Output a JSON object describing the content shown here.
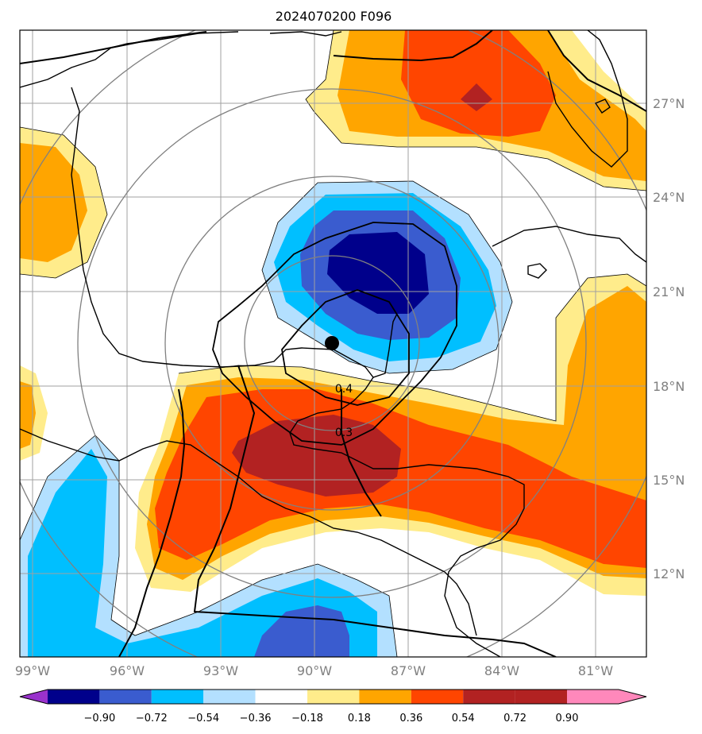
{
  "title": "2024070200 F096",
  "map": {
    "lon_ticks": [
      "99°W",
      "96°W",
      "93°W",
      "90°W",
      "87°W",
      "84°W",
      "81°W"
    ],
    "lat_ticks": [
      "27°N",
      "24°N",
      "21°N",
      "18°N",
      "15°N",
      "12°N"
    ],
    "contour_labels": [
      "0.4",
      "0.3"
    ],
    "storm_center": {
      "lon": -89.4,
      "lat": 19.3
    }
  },
  "colorbar": {
    "levels": [
      "−0.90",
      "−0.72",
      "−0.54",
      "−0.36",
      "−0.18",
      "0.18",
      "0.36",
      "0.54",
      "0.72",
      "0.90"
    ],
    "colors": [
      "#9932cc",
      "#00008b",
      "#3a5ccf",
      "#00bfff",
      "#b3e0ff",
      "#ffffff",
      "#ffec8b",
      "#ffa500",
      "#ff4500",
      "#b22222",
      "#ff88bb"
    ]
  }
}
